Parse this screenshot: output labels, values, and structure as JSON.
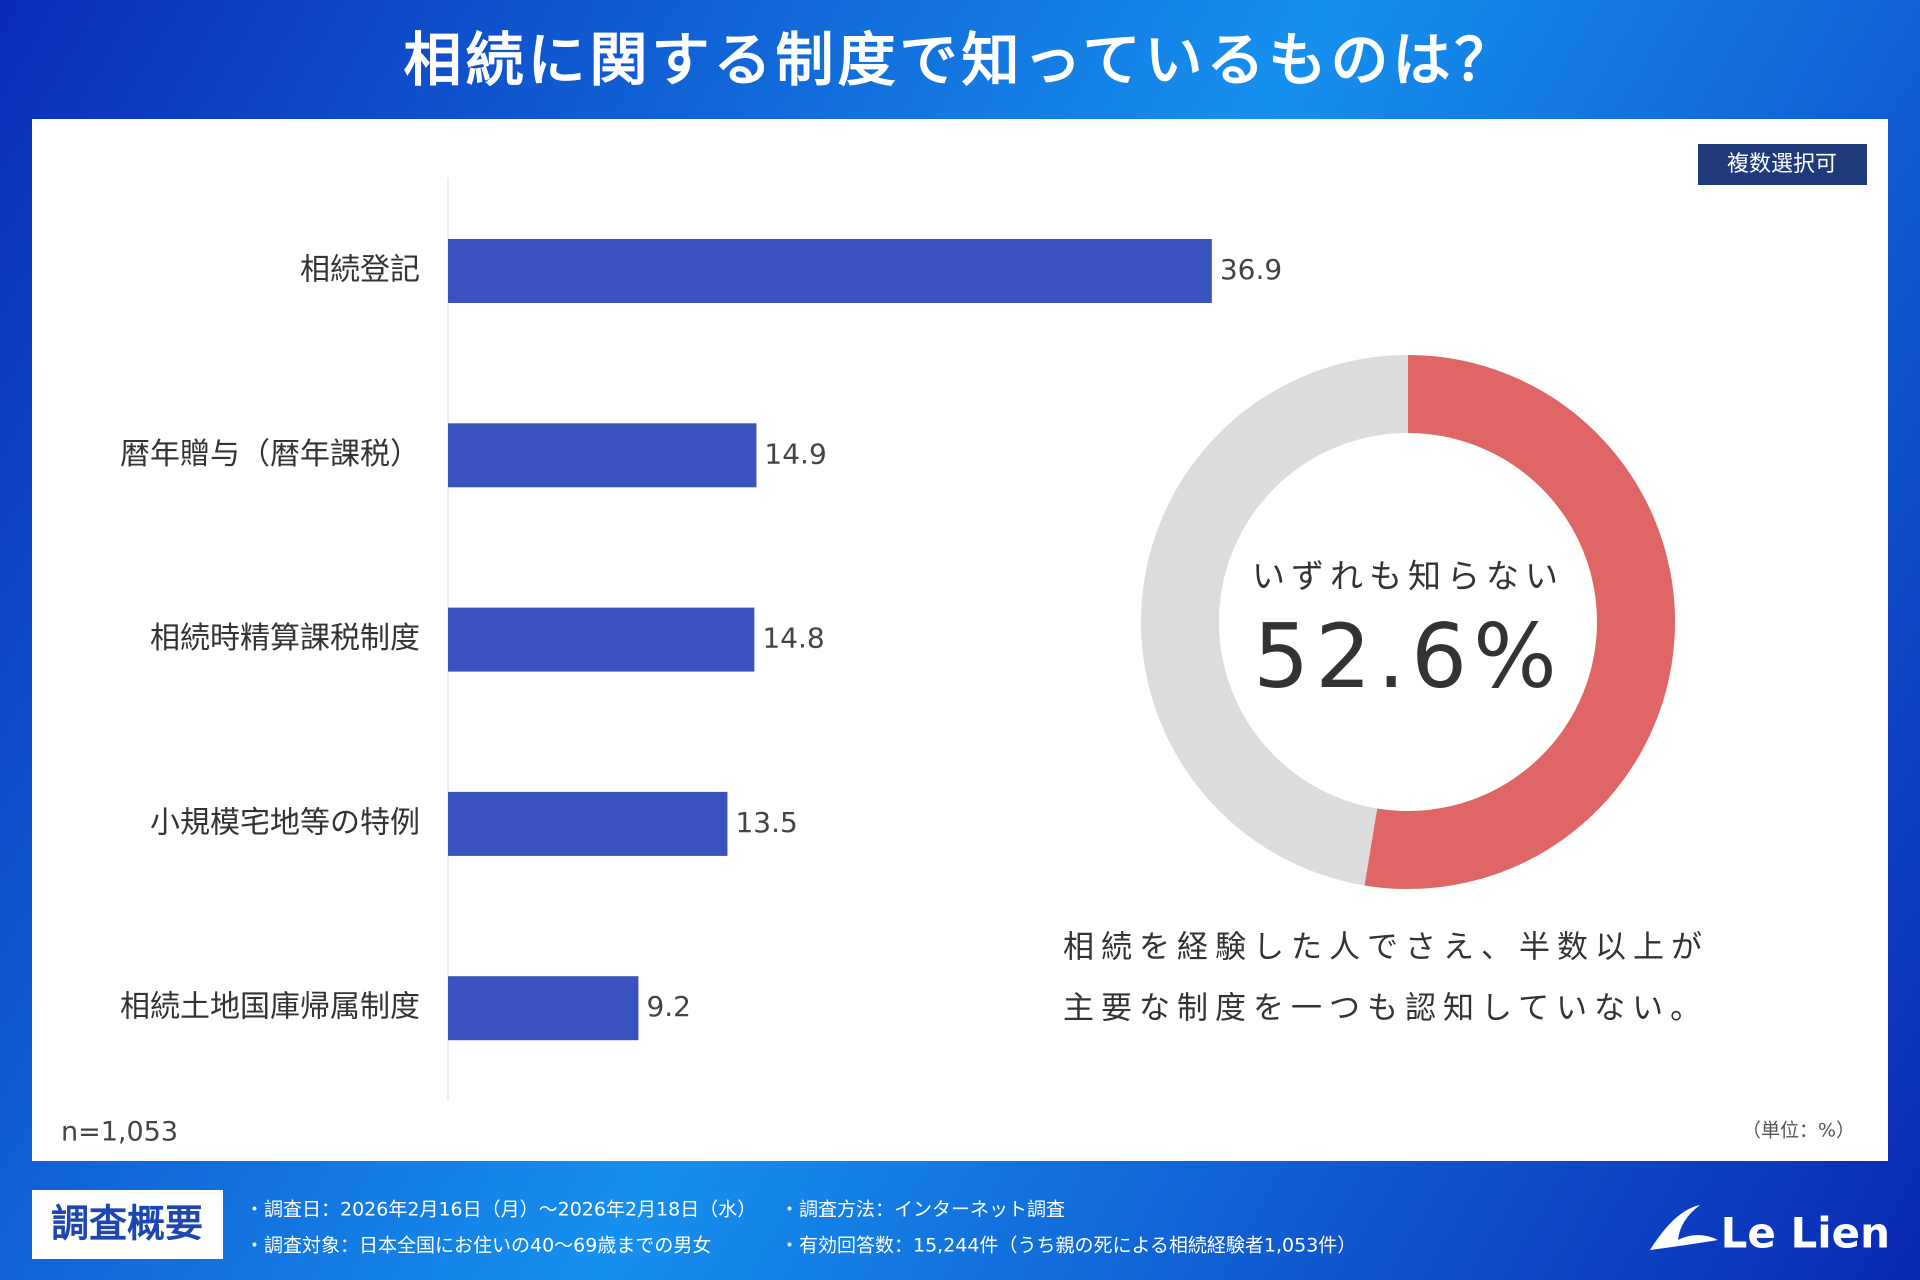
{
  "header": {
    "title": "相続に関する制度で知っているものは？"
  },
  "badge": "複数選択可",
  "chart_data": [
    {
      "type": "bar",
      "categories": [
        "相続登記",
        "暦年贈与（暦年課税）",
        "相続時精算課税制度",
        "小規模宅地等の特例",
        "相続土地国庫帰属制度"
      ],
      "values": [
        36.9,
        14.9,
        14.8,
        13.5,
        9.2
      ],
      "color": "#3a52bd",
      "sample_size": "n=1,053",
      "unit": "（単位：%）"
    },
    {
      "type": "donut",
      "title": "いずれも知らない",
      "values": [
        52.6
      ],
      "value_labels": [
        "52.6%"
      ],
      "color": "#e06666",
      "track_color": "#dcdcdc"
    }
  ],
  "caption": [
    "相続を経験した人でさえ、半数以上が",
    "主要な制度を一つも認知していない。"
  ],
  "footer": {
    "label": "調査概要",
    "items": [
      "・調査日：2026年2月16日（月）〜2026年2月18日（水）",
      "・調査対象：日本全国にお住いの40〜69歳までの男女",
      "・調査方法：インターネット調査",
      "・有効回答数：15,244件（うち親の死による相続経験者1,053件）"
    ],
    "logo": "Le Lien"
  }
}
